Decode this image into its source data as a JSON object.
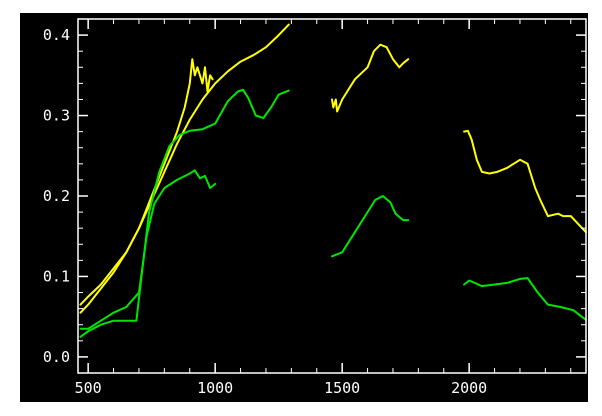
{
  "chart_data": {
    "type": "line",
    "xlim": [
      460,
      2460
    ],
    "ylim": [
      -0.02,
      0.42
    ],
    "x_ticks": [
      500,
      1000,
      1500,
      2000
    ],
    "x_tick_labels": [
      "500",
      "1000",
      "1500",
      "2000"
    ],
    "y_ticks": [
      0.0,
      0.1,
      0.2,
      0.3,
      0.4
    ],
    "y_tick_labels": [
      "0.0",
      "0.1",
      "0.2",
      "0.3",
      "0.4"
    ],
    "grid": false,
    "colors": {
      "background": "#000000",
      "axes": "#ffffff",
      "yellow": "#ffff00",
      "green": "#00e600"
    },
    "series": [
      {
        "color": "#ffff00",
        "segments": [
          [
            [
              470,
              0.065
            ],
            [
              500,
              0.075
            ],
            [
              550,
              0.09
            ],
            [
              600,
              0.11
            ],
            [
              650,
              0.13
            ],
            [
              700,
              0.16
            ],
            [
              750,
              0.2
            ],
            [
              800,
              0.24
            ],
            [
              850,
              0.28
            ],
            [
              880,
              0.31
            ],
            [
              900,
              0.34
            ],
            [
              910,
              0.37
            ],
            [
              920,
              0.35
            ],
            [
              930,
              0.36
            ],
            [
              950,
              0.34
            ],
            [
              960,
              0.36
            ],
            [
              970,
              0.33
            ],
            [
              980,
              0.35
            ],
            [
              990,
              0.345
            ]
          ],
          [
            [
              470,
              0.055
            ],
            [
              500,
              0.065
            ],
            [
              550,
              0.085
            ],
            [
              600,
              0.105
            ],
            [
              650,
              0.13
            ],
            [
              700,
              0.16
            ],
            [
              750,
              0.195
            ],
            [
              800,
              0.23
            ],
            [
              850,
              0.265
            ],
            [
              900,
              0.295
            ],
            [
              950,
              0.32
            ],
            [
              1000,
              0.34
            ],
            [
              1050,
              0.355
            ],
            [
              1100,
              0.367
            ],
            [
              1150,
              0.375
            ],
            [
              1200,
              0.385
            ],
            [
              1250,
              0.4
            ],
            [
              1290,
              0.413
            ]
          ],
          [
            [
              1460,
              0.32
            ],
            [
              1465,
              0.31
            ],
            [
              1475,
              0.32
            ],
            [
              1480,
              0.305
            ],
            [
              1500,
              0.32
            ],
            [
              1550,
              0.345
            ],
            [
              1600,
              0.36
            ],
            [
              1625,
              0.38
            ],
            [
              1650,
              0.388
            ],
            [
              1675,
              0.385
            ],
            [
              1700,
              0.37
            ],
            [
              1725,
              0.36
            ],
            [
              1740,
              0.365
            ],
            [
              1760,
              0.37
            ]
          ],
          [
            [
              1980,
              0.28
            ],
            [
              1995,
              0.281
            ],
            [
              2010,
              0.27
            ],
            [
              2030,
              0.245
            ],
            [
              2050,
              0.23
            ],
            [
              2080,
              0.228
            ],
            [
              2110,
              0.23
            ],
            [
              2150,
              0.235
            ],
            [
              2200,
              0.245
            ],
            [
              2230,
              0.24
            ],
            [
              2260,
              0.21
            ],
            [
              2280,
              0.195
            ],
            [
              2310,
              0.175
            ],
            [
              2350,
              0.178
            ],
            [
              2370,
              0.175
            ],
            [
              2400,
              0.175
            ],
            [
              2430,
              0.165
            ],
            [
              2460,
              0.155
            ]
          ]
        ]
      },
      {
        "color": "#00e600",
        "segments": [
          [
            [
              470,
              0.035
            ],
            [
              500,
              0.035
            ],
            [
              550,
              0.045
            ],
            [
              600,
              0.055
            ],
            [
              650,
              0.062
            ],
            [
              700,
              0.08
            ],
            [
              730,
              0.15
            ],
            [
              760,
              0.19
            ],
            [
              800,
              0.21
            ],
            [
              850,
              0.22
            ],
            [
              900,
              0.228
            ],
            [
              920,
              0.232
            ],
            [
              940,
              0.222
            ],
            [
              960,
              0.225
            ],
            [
              980,
              0.21
            ],
            [
              1000,
              0.215
            ]
          ],
          [
            [
              470,
              0.025
            ],
            [
              500,
              0.032
            ],
            [
              550,
              0.04
            ],
            [
              600,
              0.045
            ],
            [
              650,
              0.045
            ],
            [
              690,
              0.045
            ],
            [
              710,
              0.1
            ],
            [
              740,
              0.18
            ],
            [
              780,
              0.23
            ],
            [
              820,
              0.262
            ],
            [
              860,
              0.276
            ],
            [
              900,
              0.281
            ],
            [
              950,
              0.283
            ],
            [
              1000,
              0.29
            ],
            [
              1050,
              0.318
            ],
            [
              1090,
              0.33
            ],
            [
              1110,
              0.332
            ],
            [
              1130,
              0.322
            ],
            [
              1160,
              0.3
            ],
            [
              1190,
              0.297
            ],
            [
              1220,
              0.31
            ],
            [
              1250,
              0.326
            ],
            [
              1290,
              0.331
            ]
          ],
          [
            [
              1460,
              0.125
            ],
            [
              1500,
              0.13
            ],
            [
              1550,
              0.155
            ],
            [
              1600,
              0.18
            ],
            [
              1630,
              0.195
            ],
            [
              1660,
              0.2
            ],
            [
              1690,
              0.192
            ],
            [
              1710,
              0.178
            ],
            [
              1740,
              0.17
            ],
            [
              1760,
              0.17
            ]
          ],
          [
            [
              1980,
              0.09
            ],
            [
              2000,
              0.095
            ],
            [
              2050,
              0.088
            ],
            [
              2100,
              0.09
            ],
            [
              2150,
              0.092
            ],
            [
              2200,
              0.097
            ],
            [
              2230,
              0.098
            ],
            [
              2270,
              0.08
            ],
            [
              2310,
              0.065
            ],
            [
              2360,
              0.062
            ],
            [
              2410,
              0.058
            ],
            [
              2460,
              0.046
            ]
          ]
        ]
      }
    ]
  }
}
